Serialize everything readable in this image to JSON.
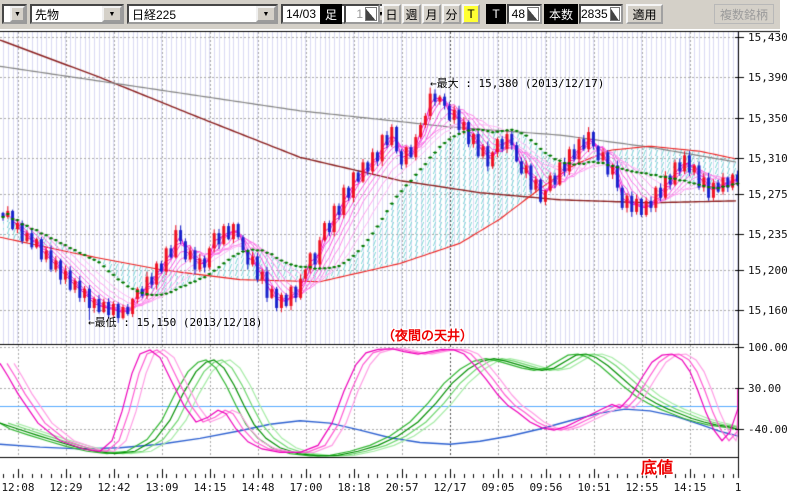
{
  "toolbar": {
    "mini_dropdown": "",
    "category_select": "先物",
    "symbol_select": "日経225",
    "contract_select": "14/03",
    "bar_label": "足",
    "bar_value": "1",
    "period_buttons": [
      "日",
      "週",
      "月",
      "分"
    ],
    "tick_toggle": "T",
    "t_label": "T",
    "t_value": "48",
    "count_label": "本数",
    "count_value": "2835",
    "apply_button": "適用",
    "multi_symbol_button": "複数銘柄",
    "accent_yellow": "#ffff33",
    "bg": "#d4d0c8"
  },
  "chart_data": [
    {
      "type": "candlestick",
      "symbol": "日経225 先物 14/03",
      "y_ticklabels": [
        "15,430",
        "15,390",
        "15,350",
        "15,310",
        "15,275",
        "15,235",
        "15,200",
        "15,160"
      ],
      "y_tickvalues": [
        15430,
        15390,
        15350,
        15310,
        15275,
        15235,
        15200,
        15160
      ],
      "x_ticklabels": [
        "12:08",
        "12:29",
        "12:42",
        "13:09",
        "14:15",
        "14:48",
        "17:00",
        "18:18",
        "20:57",
        "12/17",
        "09:05",
        "09:56",
        "10:51",
        "12:55",
        "14:15",
        "1"
      ],
      "day_boundary_label": "12/17",
      "day_boundary_index": 9,
      "closes": [
        15252,
        15258,
        15240,
        15246,
        15228,
        15236,
        15222,
        15230,
        15210,
        15219,
        15200,
        15209,
        15190,
        15199,
        15180,
        15189,
        15172,
        15181,
        15162,
        15171,
        15158,
        15168,
        15155,
        15166,
        15152,
        15163,
        15156,
        15171,
        15181,
        15174,
        15193,
        15185,
        15206,
        15198,
        15221,
        15212,
        15239,
        15228,
        15210,
        15219,
        15200,
        15211,
        15202,
        15221,
        15236,
        15225,
        15243,
        15230,
        15245,
        15232,
        15219,
        15205,
        15213,
        15190,
        15198,
        15172,
        15181,
        15162,
        15175,
        15164,
        15183,
        15172,
        15191,
        15200,
        15216,
        15205,
        15229,
        15246,
        15237,
        15263,
        15254,
        15281,
        15271,
        15296,
        15287,
        15306,
        15297,
        15316,
        15307,
        15333,
        15323,
        15341,
        15317,
        15304,
        15321,
        15311,
        15331,
        15343,
        15352,
        15374,
        15366,
        15371,
        15362,
        15348,
        15358,
        15338,
        15346,
        15324,
        15334,
        15312,
        15322,
        15302,
        15316,
        15329,
        15319,
        15334,
        15323,
        15307,
        15295,
        15303,
        15279,
        15289,
        15267,
        15278,
        15293,
        15284,
        15306,
        15297,
        15319,
        15309,
        15329,
        15319,
        15336,
        15322,
        15308,
        15316,
        15294,
        15303,
        15281,
        15261,
        15273,
        15257,
        15270,
        15254,
        15268,
        15261,
        15281,
        15271,
        15293,
        15284,
        15306,
        15297,
        15313,
        15296,
        15303,
        15281,
        15291,
        15271,
        15286,
        15277,
        15291,
        15281,
        15294,
        15287
      ],
      "extremes": {
        "high": {
          "index": 89,
          "price": 15380
        },
        "low": {
          "index": 18,
          "price": 15150
        }
      },
      "overlays": {
        "red_ma": [
          [
            0,
            15232
          ],
          [
            80,
            15215
          ],
          [
            160,
            15200
          ],
          [
            240,
            15190
          ],
          [
            320,
            15188
          ],
          [
            400,
            15206
          ],
          [
            460,
            15226
          ],
          [
            500,
            15250
          ],
          [
            540,
            15280
          ],
          [
            575,
            15304
          ],
          [
            610,
            15318
          ],
          [
            650,
            15322
          ],
          [
            700,
            15317
          ],
          [
            738,
            15309
          ]
        ],
        "maroon_ma": [
          [
            0,
            15427
          ],
          [
            100,
            15390
          ],
          [
            200,
            15350
          ],
          [
            300,
            15311
          ],
          [
            400,
            15288
          ],
          [
            480,
            15276
          ],
          [
            560,
            15269
          ],
          [
            650,
            15266
          ],
          [
            738,
            15268
          ]
        ],
        "gray_ma": [
          [
            0,
            15401
          ],
          [
            150,
            15379
          ],
          [
            300,
            15357
          ],
          [
            450,
            15341
          ],
          [
            560,
            15333
          ],
          [
            650,
            15321
          ],
          [
            738,
            15306
          ]
        ]
      },
      "green_ma_period": 21,
      "fan_periods": [
        2,
        3,
        4,
        6,
        8,
        10,
        13,
        16
      ],
      "fan_colors": [
        "#f000d0",
        "#f424d6",
        "#f83fdb",
        "#fb58e0",
        "#fd70e6",
        "#fe87eb",
        "#ff9ff0",
        "#ffb7f5"
      ],
      "annotations": [
        {
          "text": "←最大 : 15,380 (2013/12/17)",
          "x": 430,
          "y": 75,
          "style": "black"
        },
        {
          "text": "←最低 : 15,150 (2013/12/18)",
          "x": 88,
          "y": 314,
          "style": "black"
        },
        {
          "text": "（夜間の天井）",
          "x": 382,
          "y": 325,
          "style": "red-big"
        },
        {
          "text": "底値",
          "x": 641,
          "y": 454,
          "style": "red-big2"
        }
      ],
      "colors": {
        "up": "#ee1122",
        "down": "#1822cc",
        "stripe": "#dadaf3",
        "grid": "#aaaaaa",
        "day_grid": "#555555",
        "cloud_hatch": "#7fd8d8",
        "maroon": "#8b2020",
        "gray": "#848484",
        "red_line": "#ee2222",
        "green_dots": "#007a00",
        "axis": "#000000"
      }
    },
    {
      "type": "line",
      "name": "oscillator-panel",
      "y_ticklabels": [
        "100.00",
        "30.00",
        "-40.00"
      ],
      "y_tickvalues": [
        100,
        30,
        -40
      ],
      "zero_line": {
        "value": 0,
        "color": "#55aaff"
      },
      "series": [
        {
          "name": "fast-stochastic-pink",
          "color": "#ee00bb",
          "width": 1.2,
          "points": [
            [
              0,
              72
            ],
            [
              8,
              50
            ],
            [
              18,
              20
            ],
            [
              38,
              -30
            ],
            [
              60,
              -60
            ],
            [
              85,
              -75
            ],
            [
              100,
              -78
            ],
            [
              112,
              -60
            ],
            [
              122,
              -10
            ],
            [
              132,
              55
            ],
            [
              140,
              88
            ],
            [
              150,
              95
            ],
            [
              160,
              82
            ],
            [
              172,
              40
            ],
            [
              184,
              0
            ],
            [
              196,
              -28
            ],
            [
              208,
              -20
            ],
            [
              218,
              -8
            ],
            [
              226,
              -14
            ],
            [
              236,
              -40
            ],
            [
              248,
              -62
            ],
            [
              262,
              -74
            ],
            [
              280,
              -80
            ],
            [
              300,
              -80
            ],
            [
              318,
              -68
            ],
            [
              332,
              -30
            ],
            [
              344,
              25
            ],
            [
              356,
              70
            ],
            [
              366,
              90
            ],
            [
              378,
              96
            ],
            [
              392,
              97
            ],
            [
              404,
              92
            ],
            [
              418,
              88
            ],
            [
              430,
              92
            ],
            [
              442,
              96
            ],
            [
              454,
              95
            ],
            [
              464,
              88
            ],
            [
              474,
              70
            ],
            [
              486,
              45
            ],
            [
              498,
              18
            ],
            [
              508,
              0
            ],
            [
              518,
              -12
            ],
            [
              530,
              -28
            ],
            [
              542,
              -38
            ],
            [
              554,
              -42
            ],
            [
              566,
              -36
            ],
            [
              578,
              -26
            ],
            [
              590,
              -16
            ],
            [
              602,
              -6
            ],
            [
              612,
              2
            ],
            [
              620,
              -4
            ],
            [
              630,
              14
            ],
            [
              642,
              48
            ],
            [
              652,
              74
            ],
            [
              662,
              86
            ],
            [
              672,
              88
            ],
            [
              682,
              78
            ],
            [
              690,
              58
            ],
            [
              698,
              25
            ],
            [
              706,
              -12
            ],
            [
              714,
              -42
            ],
            [
              722,
              -60
            ],
            [
              730,
              -45
            ],
            [
              738,
              -5
            ],
            [
              745,
              28
            ]
          ],
          "variants": [
            {
              "dx": 7,
              "color": "#ff5ad2"
            },
            {
              "dx": 14,
              "color": "#ff9ce4"
            }
          ]
        },
        {
          "name": "slow-stochastic-green",
          "color": "#008f00",
          "width": 1.2,
          "points": [
            [
              0,
              -30
            ],
            [
              18,
              -40
            ],
            [
              36,
              -50
            ],
            [
              55,
              -60
            ],
            [
              75,
              -70
            ],
            [
              95,
              -78
            ],
            [
              115,
              -82
            ],
            [
              135,
              -78
            ],
            [
              155,
              -58
            ],
            [
              170,
              -25
            ],
            [
              183,
              20
            ],
            [
              196,
              58
            ],
            [
              206,
              74
            ],
            [
              214,
              78
            ],
            [
              224,
              64
            ],
            [
              234,
              35
            ],
            [
              244,
              0
            ],
            [
              254,
              -32
            ],
            [
              266,
              -56
            ],
            [
              280,
              -72
            ],
            [
              298,
              -82
            ],
            [
              318,
              -86
            ],
            [
              338,
              -85
            ],
            [
              358,
              -78
            ],
            [
              378,
              -68
            ],
            [
              398,
              -52
            ],
            [
              418,
              -28
            ],
            [
              436,
              4
            ],
            [
              452,
              38
            ],
            [
              468,
              62
            ],
            [
              482,
              76
            ],
            [
              494,
              80
            ],
            [
              506,
              76
            ],
            [
              518,
              70
            ],
            [
              530,
              64
            ],
            [
              542,
              60
            ],
            [
              554,
              64
            ],
            [
              566,
              76
            ],
            [
              576,
              86
            ],
            [
              586,
              88
            ],
            [
              596,
              82
            ],
            [
              608,
              68
            ],
            [
              620,
              50
            ],
            [
              632,
              32
            ],
            [
              644,
              16
            ],
            [
              656,
              4
            ],
            [
              668,
              -6
            ],
            [
              680,
              -14
            ],
            [
              692,
              -22
            ],
            [
              704,
              -28
            ],
            [
              716,
              -33
            ],
            [
              728,
              -36
            ],
            [
              745,
              -40
            ]
          ],
          "variants": [
            {
              "dx": -8,
              "color": "#2fb52f"
            },
            {
              "dx": 8,
              "color": "#6fd66f"
            },
            {
              "dx": 16,
              "color": "#a5eba5"
            }
          ]
        },
        {
          "name": "slow-line-blue",
          "color": "#2b5fd0",
          "width": 1.4,
          "points": [
            [
              0,
              -66
            ],
            [
              40,
              -71
            ],
            [
              80,
              -74
            ],
            [
              120,
              -72
            ],
            [
              160,
              -66
            ],
            [
              200,
              -56
            ],
            [
              240,
              -43
            ],
            [
              270,
              -32
            ],
            [
              300,
              -26
            ],
            [
              330,
              -30
            ],
            [
              360,
              -42
            ],
            [
              390,
              -55
            ],
            [
              420,
              -63
            ],
            [
              450,
              -66
            ],
            [
              480,
              -61
            ],
            [
              510,
              -52
            ],
            [
              540,
              -40
            ],
            [
              570,
              -26
            ],
            [
              600,
              -13
            ],
            [
              625,
              -6
            ],
            [
              650,
              -9
            ],
            [
              675,
              -18
            ],
            [
              700,
              -32
            ],
            [
              720,
              -44
            ],
            [
              745,
              -52
            ]
          ]
        }
      ]
    }
  ]
}
